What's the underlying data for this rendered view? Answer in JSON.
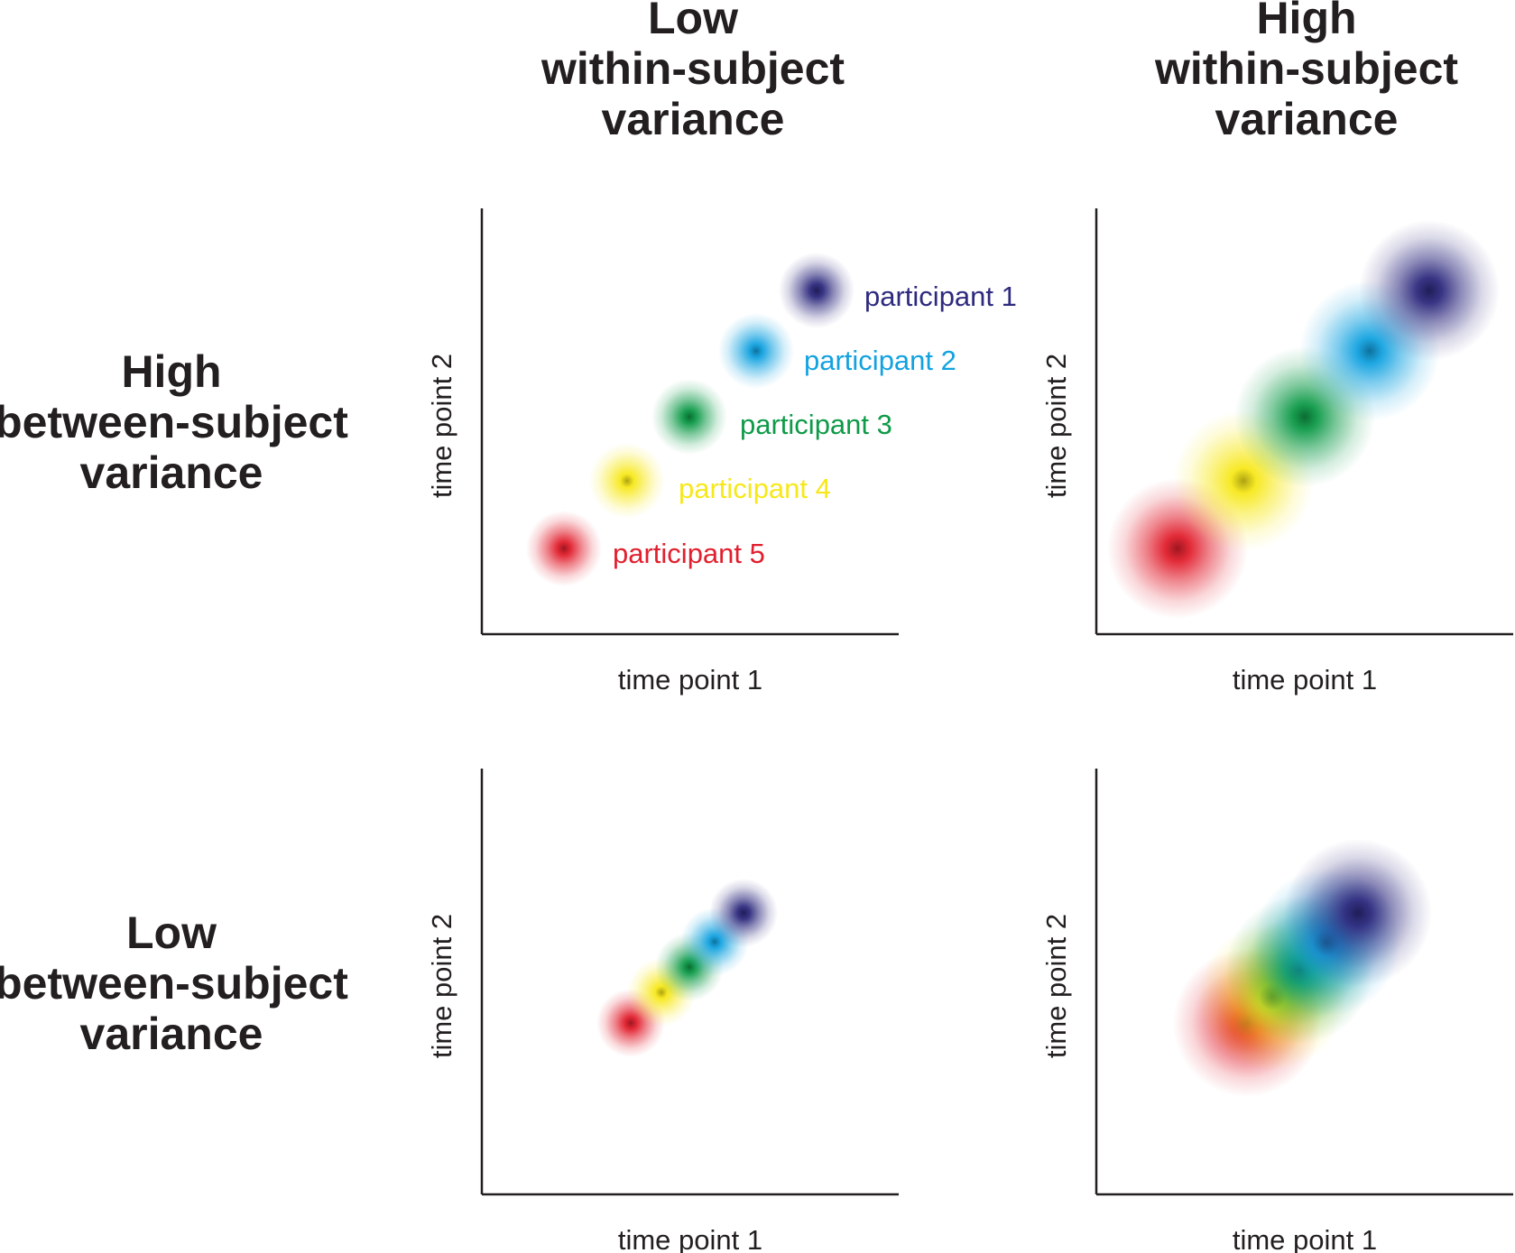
{
  "headers": {
    "columns": [
      {
        "lines": [
          "Low",
          "within-subject",
          "variance"
        ]
      },
      {
        "lines": [
          "High",
          "within-subject",
          "variance"
        ]
      }
    ],
    "rows": [
      {
        "lines": [
          "High",
          "between-subject",
          "variance"
        ]
      },
      {
        "lines": [
          "Low",
          "between-subject",
          "variance"
        ]
      }
    ]
  },
  "axes": {
    "xlabel": "time point 1",
    "ylabel": "time point 2"
  },
  "participants": [
    {
      "label": "participant 1",
      "color": "#2e2a7e"
    },
    {
      "label": "participant 2",
      "color": "#12a2e0"
    },
    {
      "label": "participant 3",
      "color": "#0e9a48"
    },
    {
      "label": "participant 4",
      "color": "#f7e81a"
    },
    {
      "label": "participant 5",
      "color": "#e11f2d"
    }
  ],
  "colors": {
    "text": "#231f20",
    "axis": "#231f20",
    "background": "#ffffff"
  }
}
